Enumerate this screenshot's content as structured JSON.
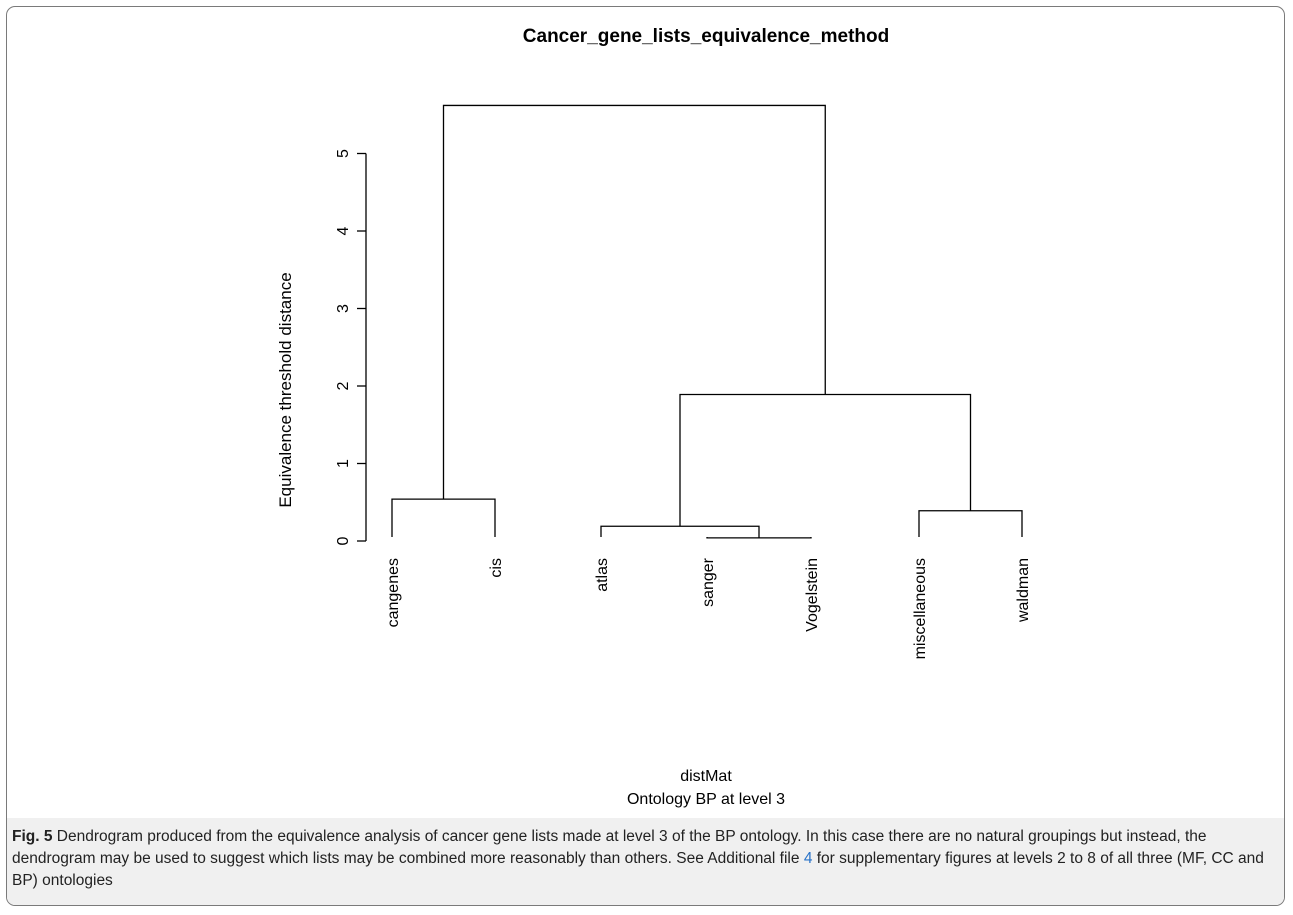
{
  "chart_data": {
    "type": "dendrogram",
    "title": "Cancer_gene_lists_equivalence_method",
    "ylabel": "Equivalence threshold distance",
    "xlabel": "distMat",
    "sublabel": "Ontology BP at level 3",
    "ylim": [
      0,
      5.7
    ],
    "yticks": [
      "0",
      "1",
      "2",
      "3",
      "4",
      "5"
    ],
    "leaves": [
      "cangenes",
      "cis",
      "atlas",
      "sanger",
      "Vogelstein",
      "miscellaneous",
      "waldman"
    ],
    "merges": [
      {
        "left": "sanger",
        "right": "Vogelstein",
        "height": 0.04
      },
      {
        "left": "atlas",
        "right": "sanger+Vogelstein",
        "height": 0.19
      },
      {
        "left": "miscellaneous",
        "right": "waldman",
        "height": 0.39
      },
      {
        "left": "cangenes",
        "right": "cis",
        "height": 0.54
      },
      {
        "left": "atlas+sanger+Vogelstein",
        "right": "miscellaneous+waldman",
        "height": 1.89
      },
      {
        "left": "cangenes+cis",
        "right": "rest",
        "height": 5.62
      }
    ]
  },
  "caption": {
    "fig_label": "Fig. 5",
    "text_before_link": " Dendrogram produced from the equivalence analysis of cancer gene lists made at level 3 of the BP ontology. In this case there are no natural groupings but instead, the dendrogram may be used to suggest which lists may be combined more reasonably than others. See Additional file ",
    "link_text": "4",
    "text_after_link": " for supplementary figures at levels 2 to 8 of all three (MF, CC and BP) ontologies"
  }
}
